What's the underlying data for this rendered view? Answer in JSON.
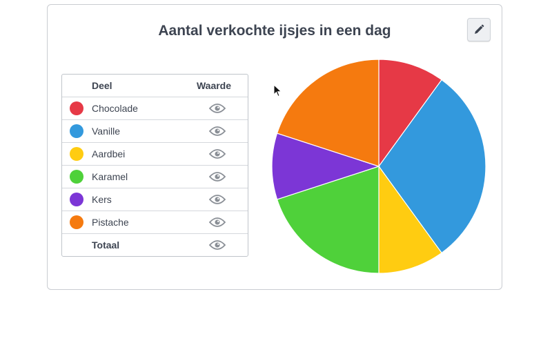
{
  "title": "Aantal verkochte ijsjes in een dag",
  "edit_icon": "pencil-icon",
  "legend": {
    "header_part": "Deel",
    "header_value": "Waarde",
    "total_label": "Totaal",
    "visibility_icon": "eye-icon"
  },
  "chart_data": {
    "type": "pie",
    "title": "Aantal verkochte ijsjes in een dag",
    "slices": [
      {
        "label": "Chocolade",
        "value": 3,
        "color": "#e63946"
      },
      {
        "label": "Vanille",
        "value": 9,
        "color": "#3399dd"
      },
      {
        "label": "Aardbei",
        "value": 3,
        "color": "#ffcc11"
      },
      {
        "label": "Karamel",
        "value": 6,
        "color": "#4fd13a"
      },
      {
        "label": "Kers",
        "value": 3,
        "color": "#7c36d6"
      },
      {
        "label": "Pistache",
        "value": 6,
        "color": "#f57a0f"
      }
    ],
    "start_angle_deg": 0,
    "direction": "clockwise"
  }
}
